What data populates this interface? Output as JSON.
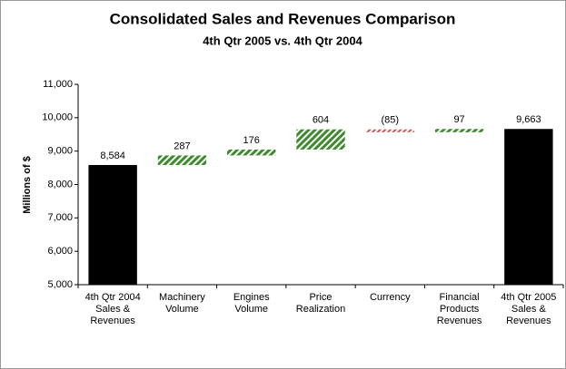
{
  "chart_data": {
    "type": "waterfall",
    "title": "Consolidated Sales and Revenues Comparison",
    "subtitle": "4th Qtr 2005 vs. 4th Qtr 2004",
    "y_label": "Millions of $",
    "categories": [
      "4th Qtr 2004 Sales & Revenues",
      "Machinery Volume",
      "Engines Volume",
      "Price Realization",
      "Currency",
      "Financial Products Revenues",
      "4th Qtr 2005 Sales & Revenues"
    ],
    "values": [
      8584,
      287,
      176,
      604,
      -85,
      97,
      9663
    ],
    "value_labels": [
      "8,584",
      "287",
      "176",
      "604",
      "(85)",
      "97",
      "9,663"
    ],
    "measure": [
      "total",
      "relative",
      "relative",
      "relative",
      "relative",
      "relative",
      "total"
    ],
    "colors": {
      "total": "#000000",
      "increase": "#3f8a2e",
      "decrease": "#d05050"
    },
    "ylim": [
      5000,
      11000
    ],
    "yticks": [
      {
        "value": 5000,
        "label": "5,000"
      },
      {
        "value": 6000,
        "label": "6,000"
      },
      {
        "value": 7000,
        "label": "7,000"
      },
      {
        "value": 8000,
        "label": "8,000"
      },
      {
        "value": 9000,
        "label": "9,000"
      },
      {
        "value": 10000,
        "label": "10,000"
      },
      {
        "value": 11000,
        "label": "11,000"
      }
    ]
  }
}
